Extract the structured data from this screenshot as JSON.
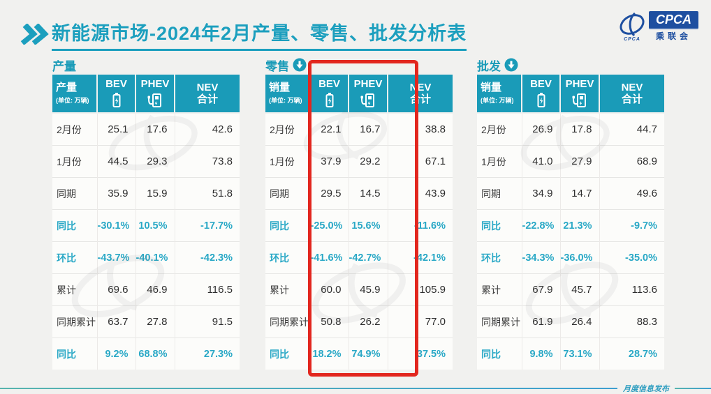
{
  "page": {
    "title": "新能源市场-2024年2月产量、零售、批发分析表",
    "footer": "月度信息发布"
  },
  "logo": {
    "name": "CPCA",
    "subtitle": "乘联会",
    "icon_caption": "CPCA"
  },
  "icons": {
    "title_marker": "double-chevron-right",
    "section_trend": "circle-down-arrow",
    "bev": "battery",
    "phev": "charging-station"
  },
  "colors": {
    "teal_header": "#1A9BB8",
    "teal_text": "#29A8C6",
    "title_teal": "#1C9FBE",
    "highlight_red": "#E2261E",
    "logo_blue": "#1E4FA0"
  },
  "teal_row_indices": [
    3,
    4,
    7
  ],
  "annotations": {
    "red_box_highlight": {
      "table": "零售",
      "columns": [
        "BEV",
        "PHEV"
      ]
    }
  },
  "chart_data": [
    {
      "type": "table",
      "title": "产量",
      "has_down_arrow": false,
      "header": {
        "label": "产量",
        "unit": "(单位: 万辆)",
        "cols": [
          {
            "abbr": "BEV",
            "icon": "battery-icon"
          },
          {
            "abbr": "PHEV",
            "icon": "charger-icon"
          },
          {
            "abbr": "NEV",
            "sub": "合计"
          }
        ]
      },
      "row_labels": [
        "2月份",
        "1月份",
        "同期",
        "同比",
        "环比",
        "累计",
        "同期累计",
        "同比"
      ],
      "rows": [
        [
          "25.1",
          "17.6",
          "42.6"
        ],
        [
          "44.5",
          "29.3",
          "73.8"
        ],
        [
          "35.9",
          "15.9",
          "51.8"
        ],
        [
          "-30.1%",
          "10.5%",
          "-17.7%"
        ],
        [
          "-43.7%",
          "-40.1%",
          "-42.3%"
        ],
        [
          "69.6",
          "46.9",
          "116.5"
        ],
        [
          "63.7",
          "27.8",
          "91.5"
        ],
        [
          "9.2%",
          "68.8%",
          "27.3%"
        ]
      ]
    },
    {
      "type": "table",
      "title": "零售",
      "has_down_arrow": true,
      "header": {
        "label": "销量",
        "unit": "(单位: 万辆)",
        "cols": [
          {
            "abbr": "BEV",
            "icon": "battery-icon"
          },
          {
            "abbr": "PHEV",
            "icon": "charger-icon"
          },
          {
            "abbr": "NEV",
            "sub": "合计"
          }
        ]
      },
      "row_labels": [
        "2月份",
        "1月份",
        "同期",
        "同比",
        "环比",
        "累计",
        "同期累计",
        "同比"
      ],
      "rows": [
        [
          "22.1",
          "16.7",
          "38.8"
        ],
        [
          "37.9",
          "29.2",
          "67.1"
        ],
        [
          "29.5",
          "14.5",
          "43.9"
        ],
        [
          "-25.0%",
          "15.6%",
          "-11.6%"
        ],
        [
          "-41.6%",
          "-42.7%",
          "-42.1%"
        ],
        [
          "60.0",
          "45.9",
          "105.9"
        ],
        [
          "50.8",
          "26.2",
          "77.0"
        ],
        [
          "18.2%",
          "74.9%",
          "37.5%"
        ]
      ]
    },
    {
      "type": "table",
      "title": "批发",
      "has_down_arrow": true,
      "header": {
        "label": "销量",
        "unit": "(单位: 万辆)",
        "cols": [
          {
            "abbr": "BEV",
            "icon": "battery-icon"
          },
          {
            "abbr": "PHEV",
            "icon": "charger-icon"
          },
          {
            "abbr": "NEV",
            "sub": "合计"
          }
        ]
      },
      "row_labels": [
        "2月份",
        "1月份",
        "同期",
        "同比",
        "环比",
        "累计",
        "同期累计",
        "同比"
      ],
      "rows": [
        [
          "26.9",
          "17.8",
          "44.7"
        ],
        [
          "41.0",
          "27.9",
          "68.9"
        ],
        [
          "34.9",
          "14.7",
          "49.6"
        ],
        [
          "-22.8%",
          "21.3%",
          "-9.7%"
        ],
        [
          "-34.3%",
          "-36.0%",
          "-35.0%"
        ],
        [
          "67.9",
          "45.7",
          "113.6"
        ],
        [
          "61.9",
          "26.4",
          "88.3"
        ],
        [
          "9.8%",
          "73.1%",
          "28.7%"
        ]
      ]
    }
  ]
}
